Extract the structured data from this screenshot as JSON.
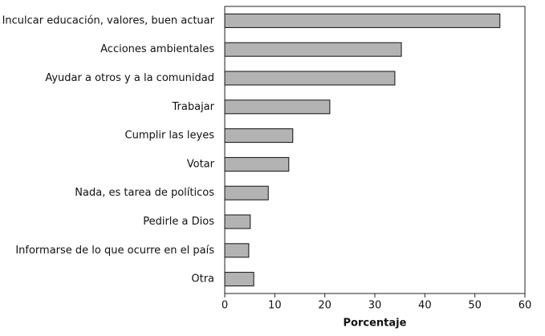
{
  "chart_data": {
    "type": "bar",
    "orientation": "horizontal",
    "categories": [
      "Inculcar educación, valores, buen actuar",
      "Acciones ambientales",
      "Ayudar a otros y a la comunidad",
      "Trabajar",
      "Cumplir las leyes",
      "Votar",
      "Nada, es tarea de políticos",
      "Pedirle a Dios",
      "Informarse de lo que ocurre en el país",
      "Otra"
    ],
    "values": [
      55.0,
      35.3,
      34.0,
      21.0,
      13.6,
      12.8,
      8.7,
      5.1,
      4.8,
      5.8
    ],
    "color": "#b3b3b3",
    "xlabel": "Porcentaje",
    "xlim": [
      0,
      60
    ],
    "xticks": [
      0,
      10,
      20,
      30,
      40,
      50,
      60
    ]
  }
}
